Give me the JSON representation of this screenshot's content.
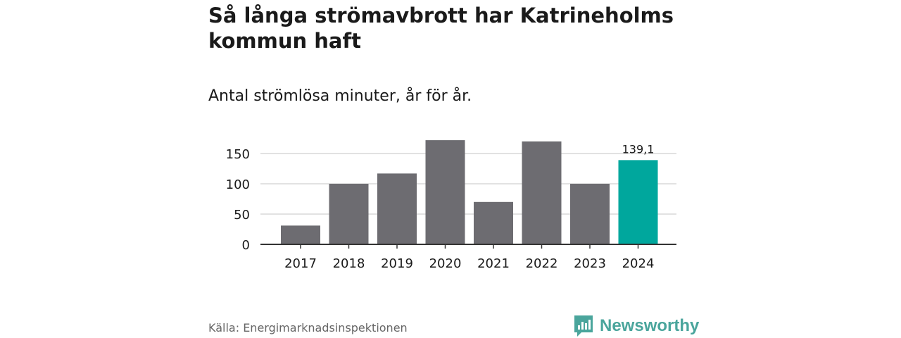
{
  "header": {
    "title": "Så långa strömavbrott har Katrineholms kommun haft",
    "subtitle": "Antal strömlösa minuter, år för år."
  },
  "footer": {
    "source": "Källa: Energimarknadsinspektionen",
    "brand": "Newsworthy"
  },
  "colors": {
    "bar": "#6d6c71",
    "highlight": "#00a79d",
    "grid": "#d9d9d9",
    "axis": "#333333",
    "brand": "#4aa59c"
  },
  "chart_data": {
    "type": "bar",
    "title": "Så långa strömavbrott har Katrineholms kommun haft",
    "subtitle": "Antal strömlösa minuter, år för år.",
    "categories": [
      "2017",
      "2018",
      "2019",
      "2020",
      "2021",
      "2022",
      "2023",
      "2024"
    ],
    "values": [
      31,
      100,
      117,
      172,
      70,
      170,
      100,
      139.1
    ],
    "highlight_index": 7,
    "data_labels": [
      {
        "index": 7,
        "text": "139,1"
      }
    ],
    "y_ticks": [
      0,
      50,
      100,
      150
    ],
    "ylim": [
      0,
      172
    ],
    "xlabel": "",
    "ylabel": "",
    "grid": true
  }
}
